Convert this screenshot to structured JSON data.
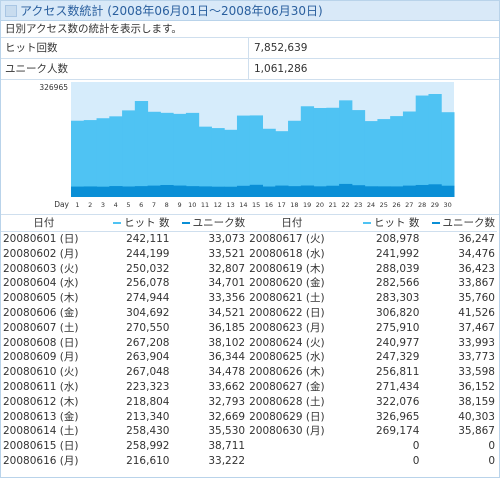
{
  "title": "アクセス数統計 (2008年06月01日～2008年06月30日)",
  "description": "日別アクセス数の統計を表示します。",
  "summary": [
    {
      "label": "ヒット回数",
      "value": "7,852,639"
    },
    {
      "label": "ユニーク人数",
      "value": "1,061,286"
    }
  ],
  "colors": {
    "hits": "#4fc3f3",
    "unique": "#0a8fd6",
    "header_bg": "#d9e9f8",
    "border": "#b9d3ea",
    "title_text": "#2a5f9e"
  },
  "chart_data": {
    "type": "bar",
    "ymax_label": "326965",
    "xlabel": "Day",
    "categories": [
      "1",
      "2",
      "3",
      "4",
      "5",
      "6",
      "7",
      "8",
      "9",
      "10",
      "11",
      "12",
      "13",
      "14",
      "15",
      "16",
      "17",
      "18",
      "19",
      "20",
      "21",
      "22",
      "23",
      "24",
      "25",
      "26",
      "27",
      "28",
      "29",
      "30"
    ],
    "series": [
      {
        "name": "ヒット 数",
        "values": [
          242111,
          244199,
          250032,
          256078,
          274944,
          304692,
          270550,
          267208,
          263904,
          267048,
          223323,
          218804,
          213340,
          258430,
          258992,
          216610,
          208978,
          241992,
          288039,
          282566,
          283303,
          306820,
          275910,
          240977,
          247329,
          256811,
          271434,
          322076,
          326965,
          269174
        ]
      },
      {
        "name": "ユニーク数",
        "values": [
          33073,
          33521,
          32807,
          34701,
          33356,
          34521,
          36185,
          38102,
          36344,
          34478,
          33662,
          32793,
          32669,
          35530,
          38711,
          33222,
          36247,
          34476,
          36423,
          33867,
          35760,
          41526,
          37467,
          33993,
          33773,
          33598,
          36152,
          38159,
          40303,
          35867
        ]
      }
    ]
  },
  "table": {
    "headers": {
      "date": "日付",
      "hits": "ヒット 数",
      "unique": "ユニーク数"
    },
    "rows": [
      [
        [
          "20080601 (日)",
          "242,111",
          "33,073"
        ],
        [
          "20080617 (火)",
          "208,978",
          "36,247"
        ]
      ],
      [
        [
          "20080602 (月)",
          "244,199",
          "33,521"
        ],
        [
          "20080618 (水)",
          "241,992",
          "34,476"
        ]
      ],
      [
        [
          "20080603 (火)",
          "250,032",
          "32,807"
        ],
        [
          "20080619 (木)",
          "288,039",
          "36,423"
        ]
      ],
      [
        [
          "20080604 (水)",
          "256,078",
          "34,701"
        ],
        [
          "20080620 (金)",
          "282,566",
          "33,867"
        ]
      ],
      [
        [
          "20080605 (木)",
          "274,944",
          "33,356"
        ],
        [
          "20080621 (土)",
          "283,303",
          "35,760"
        ]
      ],
      [
        [
          "20080606 (金)",
          "304,692",
          "34,521"
        ],
        [
          "20080622 (日)",
          "306,820",
          "41,526"
        ]
      ],
      [
        [
          "20080607 (土)",
          "270,550",
          "36,185"
        ],
        [
          "20080623 (月)",
          "275,910",
          "37,467"
        ]
      ],
      [
        [
          "20080608 (日)",
          "267,208",
          "38,102"
        ],
        [
          "20080624 (火)",
          "240,977",
          "33,993"
        ]
      ],
      [
        [
          "20080609 (月)",
          "263,904",
          "36,344"
        ],
        [
          "20080625 (水)",
          "247,329",
          "33,773"
        ]
      ],
      [
        [
          "20080610 (火)",
          "267,048",
          "34,478"
        ],
        [
          "20080626 (木)",
          "256,811",
          "33,598"
        ]
      ],
      [
        [
          "20080611 (水)",
          "223,323",
          "33,662"
        ],
        [
          "20080627 (金)",
          "271,434",
          "36,152"
        ]
      ],
      [
        [
          "20080612 (木)",
          "218,804",
          "32,793"
        ],
        [
          "20080628 (土)",
          "322,076",
          "38,159"
        ]
      ],
      [
        [
          "20080613 (金)",
          "213,340",
          "32,669"
        ],
        [
          "20080629 (日)",
          "326,965",
          "40,303"
        ]
      ],
      [
        [
          "20080614 (土)",
          "258,430",
          "35,530"
        ],
        [
          "20080630 (月)",
          "269,174",
          "35,867"
        ]
      ],
      [
        [
          "20080615 (日)",
          "258,992",
          "38,711"
        ],
        [
          "",
          "0",
          "0"
        ]
      ],
      [
        [
          "20080616 (月)",
          "216,610",
          "33,222"
        ],
        [
          "",
          "0",
          "0"
        ]
      ]
    ]
  }
}
